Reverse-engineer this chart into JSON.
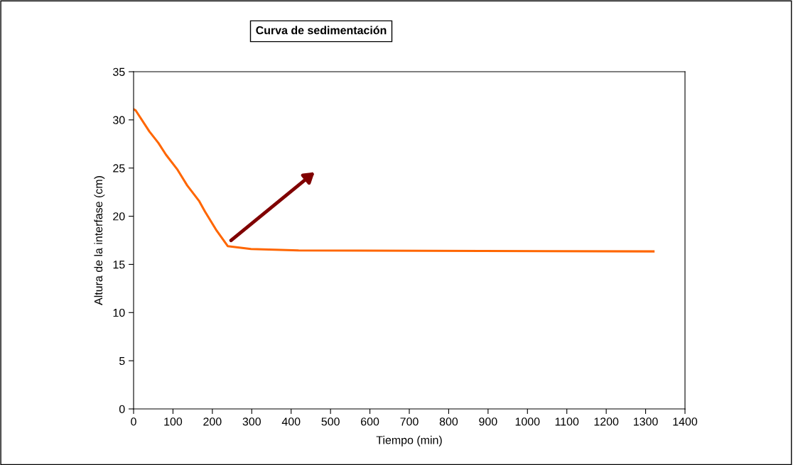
{
  "chart_data": {
    "type": "line",
    "title": "Curva de sedimentación",
    "xlabel": "Tiempo (min)",
    "ylabel": "Altura de la interfase (cm)",
    "x": [
      0,
      5,
      40,
      63,
      82,
      112,
      136,
      166,
      181,
      211,
      239,
      298,
      419,
      1320
    ],
    "series": [
      {
        "color": "#ff6600",
        "values": [
          31.1,
          31.0,
          28.8,
          27.6,
          26.4,
          24.8,
          23.2,
          21.6,
          20.5,
          18.5,
          16.9,
          16.6,
          16.45,
          16.35
        ]
      }
    ],
    "xlim": [
      0,
      1400
    ],
    "xticks": [
      0,
      100,
      200,
      300,
      400,
      500,
      600,
      700,
      800,
      900,
      1000,
      1100,
      1200,
      1300,
      1400
    ],
    "ylim": [
      0,
      35
    ],
    "yticks": [
      0,
      5,
      10,
      15,
      20,
      25,
      30,
      35
    ],
    "grid": false,
    "legend": false,
    "marker": "none",
    "line_style": "solid"
  }
}
